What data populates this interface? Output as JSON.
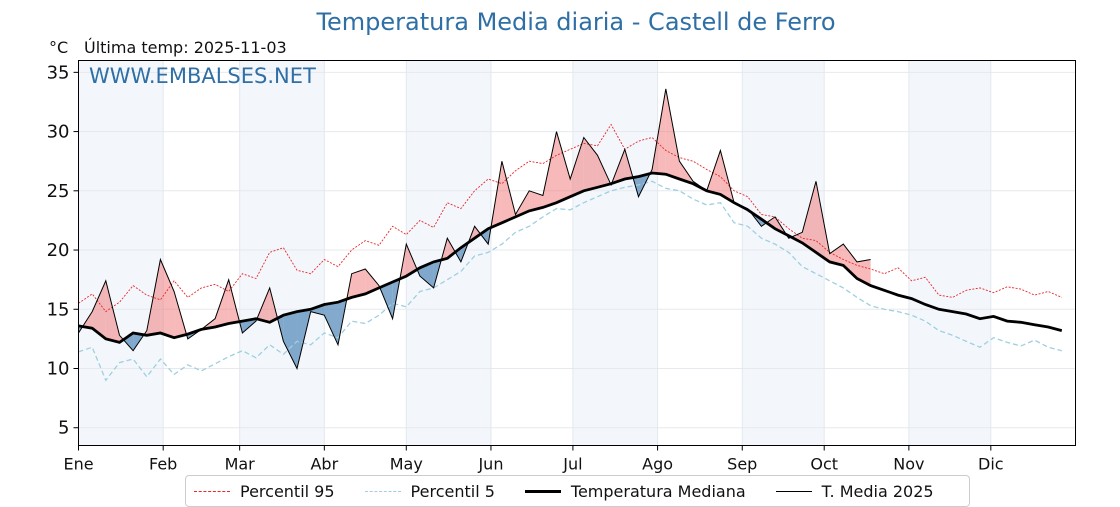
{
  "chart_data": {
    "type": "line",
    "title": "Temperatura Media diaria - Castell de Ferro",
    "unit_label": "°C",
    "subtitle": "Última temp: 2025-11-03",
    "watermark": "WWW.EMBALSES.NET",
    "ylim": [
      3.5,
      36
    ],
    "yticks": [
      5,
      10,
      15,
      20,
      25,
      30,
      35
    ],
    "xlim": [
      0,
      365
    ],
    "xtick_days": [
      0,
      31,
      59,
      90,
      120,
      151,
      181,
      212,
      243,
      273,
      304,
      334
    ],
    "xtick_labels": [
      "Ene",
      "Feb",
      "Mar",
      "Abr",
      "May",
      "Jun",
      "Jul",
      "Ago",
      "Sep",
      "Oct",
      "Nov",
      "Dic"
    ],
    "grid": true,
    "legend_position": "bottom-center",
    "colors": {
      "p95": "#e8272a",
      "p5": "#9fcfe0",
      "median": "#000000",
      "actual": "#000000",
      "above": "#f08080",
      "below": "#4f86b8",
      "band": "#f3f7fb",
      "title": "#2f6fa5"
    },
    "x_step_days": 5,
    "series": [
      {
        "name": "Percentil 95",
        "values": [
          15.5,
          16.3,
          14.8,
          15.6,
          17.0,
          16.2,
          15.8,
          17.4,
          16.0,
          16.8,
          17.1,
          16.5,
          18.0,
          17.6,
          19.8,
          20.2,
          18.3,
          18.0,
          19.2,
          18.6,
          20.0,
          20.8,
          20.4,
          22.0,
          21.3,
          22.5,
          21.9,
          24.0,
          23.5,
          25.0,
          26.0,
          25.6,
          26.7,
          27.5,
          27.3,
          28.0,
          28.5,
          29.0,
          28.8,
          30.6,
          28.5,
          29.2,
          29.5,
          28.4,
          27.8,
          27.5,
          26.8,
          26.2,
          25.0,
          24.5,
          23.0,
          22.8,
          21.8,
          21.0,
          20.8,
          19.8,
          19.2,
          18.7,
          18.4,
          18.0,
          18.5,
          17.4,
          17.7,
          16.2,
          16.0,
          16.6,
          16.8,
          16.4,
          16.9,
          16.7,
          16.2,
          16.5,
          16.0
        ]
      },
      {
        "name": "Percentil 5",
        "values": [
          11.4,
          11.8,
          9.0,
          10.5,
          10.8,
          9.3,
          10.8,
          9.5,
          10.3,
          9.8,
          10.4,
          11.0,
          11.5,
          10.9,
          12.0,
          11.2,
          12.3,
          12.0,
          13.0,
          12.6,
          14.0,
          13.8,
          14.5,
          15.5,
          15.2,
          16.5,
          16.8,
          17.5,
          18.2,
          19.5,
          19.8,
          20.5,
          21.5,
          22.0,
          22.8,
          23.5,
          23.4,
          24.0,
          24.5,
          25.0,
          25.3,
          25.5,
          25.8,
          25.2,
          25.0,
          24.3,
          23.8,
          24.0,
          22.3,
          22.0,
          21.0,
          20.5,
          19.8,
          18.6,
          18.0,
          17.4,
          16.8,
          16.0,
          15.3,
          15.0,
          14.8,
          14.5,
          14.0,
          13.2,
          12.8,
          12.3,
          11.8,
          12.6,
          12.2,
          11.9,
          12.4,
          11.8,
          11.5
        ]
      },
      {
        "name": "Temperatura Mediana",
        "values": [
          13.6,
          13.4,
          12.5,
          12.2,
          13.0,
          12.8,
          13.0,
          12.6,
          12.9,
          13.3,
          13.5,
          13.8,
          14.0,
          14.2,
          13.9,
          14.5,
          14.8,
          15.0,
          15.4,
          15.6,
          16.0,
          16.3,
          16.8,
          17.3,
          17.8,
          18.5,
          19.0,
          19.3,
          20.2,
          21.0,
          21.8,
          22.3,
          22.8,
          23.3,
          23.6,
          24.0,
          24.5,
          25.0,
          25.3,
          25.6,
          26.0,
          26.2,
          26.5,
          26.4,
          26.0,
          25.6,
          25.0,
          24.7,
          24.0,
          23.4,
          22.6,
          21.8,
          21.2,
          20.6,
          19.8,
          19.0,
          18.7,
          17.6,
          17.0,
          16.6,
          16.2,
          15.9,
          15.4,
          15.0,
          14.8,
          14.6,
          14.2,
          14.4,
          14.0,
          13.9,
          13.7,
          13.5,
          13.2
        ]
      },
      {
        "name": "T. Media 2025",
        "values": [
          13.0,
          14.8,
          17.4,
          12.8,
          11.5,
          13.2,
          19.2,
          16.5,
          12.5,
          13.3,
          14.2,
          17.5,
          13.0,
          14.0,
          16.8,
          12.3,
          10.0,
          14.8,
          14.5,
          12.0,
          18.0,
          18.4,
          17.0,
          14.2,
          20.5,
          17.8,
          16.8,
          21.0,
          19.0,
          22.0,
          20.5,
          27.5,
          23.0,
          25.0,
          24.6,
          30.0,
          26.0,
          29.5,
          28.0,
          25.5,
          28.5,
          24.5,
          26.8,
          33.6,
          27.5,
          25.8,
          25.0,
          28.4,
          24.0,
          23.5,
          22.0,
          22.8,
          21.0,
          21.5,
          25.8,
          19.7,
          20.5,
          19.0,
          19.2,
          null,
          null,
          null,
          null,
          null,
          null,
          null,
          null,
          null,
          null,
          null,
          null,
          null,
          null
        ]
      }
    ]
  },
  "legend": {
    "items": [
      "Percentil 95",
      "Percentil 5",
      "Temperatura Mediana",
      "T. Media 2025"
    ]
  }
}
